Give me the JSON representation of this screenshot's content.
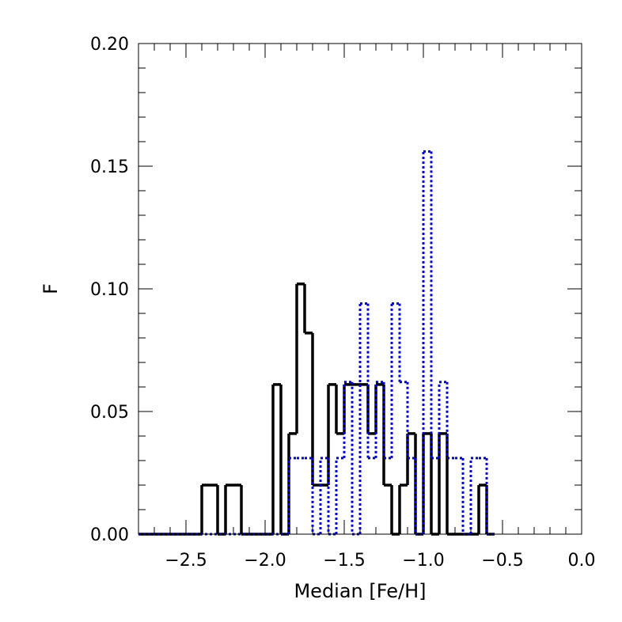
{
  "chart_data": {
    "type": "histogram",
    "title": "",
    "xlabel": "Median [Fe/H]",
    "ylabel": "F",
    "xlim": [
      -2.8,
      0.0
    ],
    "ylim": [
      0.0,
      0.2
    ],
    "x_ticks": [
      -2.5,
      -2.0,
      -1.5,
      -1.0,
      -0.5,
      0.0
    ],
    "x_tick_labels": [
      "−2.5",
      "−2.0",
      "−1.5",
      "−1.0",
      "−0.5",
      "0.0"
    ],
    "y_ticks": [
      0.0,
      0.05,
      0.1,
      0.15,
      0.2
    ],
    "y_tick_labels": [
      "0.00",
      "0.05",
      "0.10",
      "0.15",
      "0.20"
    ],
    "grid": false,
    "legend": "none",
    "bin_width": 0.05,
    "series": [
      {
        "style": "solid",
        "color": "#000000",
        "bins": [
          [
            -2.8,
            0.0
          ],
          [
            -2.4,
            0.02
          ],
          [
            -2.35,
            0.02
          ],
          [
            -2.3,
            0.0
          ],
          [
            -2.25,
            0.02
          ],
          [
            -2.2,
            0.02
          ],
          [
            -2.15,
            0.0
          ],
          [
            -1.95,
            0.061
          ],
          [
            -1.9,
            0.0
          ],
          [
            -1.85,
            0.041
          ],
          [
            -1.8,
            0.102
          ],
          [
            -1.75,
            0.082
          ],
          [
            -1.7,
            0.02
          ],
          [
            -1.65,
            0.02
          ],
          [
            -1.6,
            0.061
          ],
          [
            -1.55,
            0.041
          ],
          [
            -1.5,
            0.061
          ],
          [
            -1.45,
            0.061
          ],
          [
            -1.4,
            0.061
          ],
          [
            -1.35,
            0.041
          ],
          [
            -1.3,
            0.061
          ],
          [
            -1.25,
            0.02
          ],
          [
            -1.2,
            0.0
          ],
          [
            -1.15,
            0.02
          ],
          [
            -1.1,
            0.041
          ],
          [
            -1.05,
            0.0
          ],
          [
            -1.0,
            0.041
          ],
          [
            -0.95,
            0.0
          ],
          [
            -0.9,
            0.041
          ],
          [
            -0.85,
            0.0
          ],
          [
            -0.8,
            0.0
          ],
          [
            -0.75,
            0.0
          ],
          [
            -0.7,
            0.0
          ],
          [
            -0.65,
            0.02
          ],
          [
            -0.6,
            0.0
          ]
        ]
      },
      {
        "style": "dotted",
        "color": "#0000cc",
        "bins": [
          [
            -2.8,
            0.0
          ],
          [
            -1.85,
            0.031
          ],
          [
            -1.8,
            0.031
          ],
          [
            -1.75,
            0.031
          ],
          [
            -1.7,
            0.0
          ],
          [
            -1.65,
            0.031
          ],
          [
            -1.6,
            0.0
          ],
          [
            -1.55,
            0.031
          ],
          [
            -1.5,
            0.062
          ],
          [
            -1.45,
            0.0
          ],
          [
            -1.4,
            0.094
          ],
          [
            -1.35,
            0.031
          ],
          [
            -1.3,
            0.062
          ],
          [
            -1.25,
            0.031
          ],
          [
            -1.2,
            0.094
          ],
          [
            -1.15,
            0.062
          ],
          [
            -1.1,
            0.031
          ],
          [
            -1.05,
            0.0
          ],
          [
            -1.0,
            0.156
          ],
          [
            -0.95,
            0.031
          ],
          [
            -0.9,
            0.062
          ],
          [
            -0.85,
            0.031
          ],
          [
            -0.8,
            0.031
          ],
          [
            -0.75,
            0.0
          ],
          [
            -0.7,
            0.031
          ],
          [
            -0.65,
            0.031
          ],
          [
            -0.6,
            0.0
          ]
        ]
      }
    ]
  }
}
